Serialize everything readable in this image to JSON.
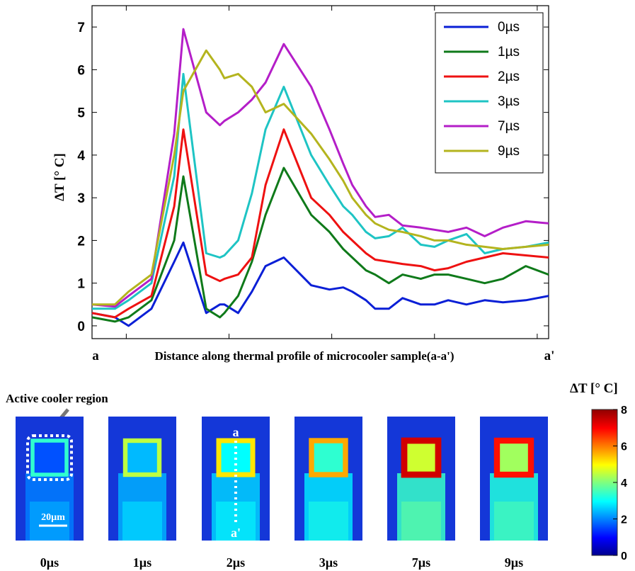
{
  "chart_data": {
    "type": "line",
    "ylabel": "ΔT [° C]",
    "xlabel": "Distance along thermal profile of microcooler sample(a-a')",
    "x_start_label": "a",
    "x_end_label": "a'",
    "xlim": [
      0,
      1
    ],
    "ylim": [
      -0.3,
      7.5
    ],
    "yticks": [
      0,
      1,
      2,
      3,
      4,
      5,
      6,
      7
    ],
    "xticks": [
      0.075,
      0.3,
      0.525,
      0.75,
      0.975
    ],
    "grid": false,
    "legend_position": "top-right",
    "x": [
      0,
      0.05,
      0.08,
      0.13,
      0.18,
      0.2,
      0.25,
      0.28,
      0.29,
      0.32,
      0.35,
      0.38,
      0.42,
      0.48,
      0.52,
      0.55,
      0.57,
      0.6,
      0.62,
      0.65,
      0.68,
      0.72,
      0.75,
      0.78,
      0.82,
      0.86,
      0.9,
      0.95,
      1.0
    ],
    "series": [
      {
        "name": "0µs",
        "color": "#0a1fd6",
        "values": [
          0.3,
          0.2,
          0.0,
          0.4,
          1.5,
          1.95,
          0.3,
          0.5,
          0.5,
          0.3,
          0.8,
          1.4,
          1.6,
          0.95,
          0.85,
          0.9,
          0.8,
          0.6,
          0.4,
          0.4,
          0.65,
          0.5,
          0.5,
          0.6,
          0.5,
          0.6,
          0.55,
          0.6,
          0.7
        ]
      },
      {
        "name": "1µs",
        "color": "#0f7a1a",
        "values": [
          0.2,
          0.1,
          0.2,
          0.6,
          2.0,
          3.5,
          0.4,
          0.2,
          0.3,
          0.7,
          1.5,
          2.6,
          3.7,
          2.6,
          2.2,
          1.8,
          1.6,
          1.3,
          1.2,
          1.0,
          1.2,
          1.1,
          1.2,
          1.2,
          1.1,
          1.0,
          1.1,
          1.4,
          1.2
        ]
      },
      {
        "name": "2µs",
        "color": "#ee1111",
        "values": [
          0.3,
          0.2,
          0.4,
          0.7,
          2.8,
          4.6,
          1.2,
          1.05,
          1.1,
          1.2,
          1.6,
          3.3,
          4.6,
          3.0,
          2.6,
          2.2,
          2.0,
          1.7,
          1.55,
          1.5,
          1.45,
          1.4,
          1.3,
          1.35,
          1.5,
          1.6,
          1.7,
          1.65,
          1.6
        ]
      },
      {
        "name": "3µs",
        "color": "#1ec4c4",
        "values": [
          0.4,
          0.4,
          0.6,
          1.0,
          3.5,
          5.9,
          1.7,
          1.6,
          1.65,
          2.0,
          3.1,
          4.6,
          5.6,
          4.0,
          3.3,
          2.8,
          2.6,
          2.2,
          2.05,
          2.1,
          2.3,
          1.9,
          1.85,
          2.0,
          2.15,
          1.7,
          1.8,
          1.85,
          1.95
        ]
      },
      {
        "name": "7µs",
        "color": "#b41ec8",
        "values": [
          0.5,
          0.45,
          0.7,
          1.1,
          4.5,
          6.95,
          5.0,
          4.7,
          4.8,
          5.0,
          5.3,
          5.7,
          6.6,
          5.6,
          4.6,
          3.8,
          3.3,
          2.8,
          2.55,
          2.6,
          2.35,
          2.3,
          2.25,
          2.2,
          2.3,
          2.1,
          2.3,
          2.45,
          2.4
        ]
      },
      {
        "name": "9µs",
        "color": "#b4b41e",
        "values": [
          0.5,
          0.5,
          0.8,
          1.2,
          4.0,
          5.5,
          6.45,
          6.0,
          5.8,
          5.9,
          5.6,
          5.0,
          5.2,
          4.5,
          3.9,
          3.4,
          3.0,
          2.6,
          2.4,
          2.25,
          2.2,
          2.1,
          2.0,
          2.0,
          1.9,
          1.85,
          1.8,
          1.85,
          1.9
        ]
      }
    ]
  },
  "images": {
    "region_label": "Active cooler region",
    "scale_label": "20µm",
    "profile_top": "a",
    "profile_bottom": "a'",
    "frames": [
      {
        "label": "0µs",
        "level": 0.12
      },
      {
        "label": "1µs",
        "level": 0.35
      },
      {
        "label": "2µs",
        "level": 0.5
      },
      {
        "label": "3µs",
        "level": 0.6
      },
      {
        "label": "7µs",
        "level": 0.95
      },
      {
        "label": "9µs",
        "level": 0.85
      }
    ]
  },
  "colorbar": {
    "title": "ΔT [°  C]",
    "ticks": [
      "0",
      "2",
      "4",
      "6",
      "8"
    ]
  }
}
